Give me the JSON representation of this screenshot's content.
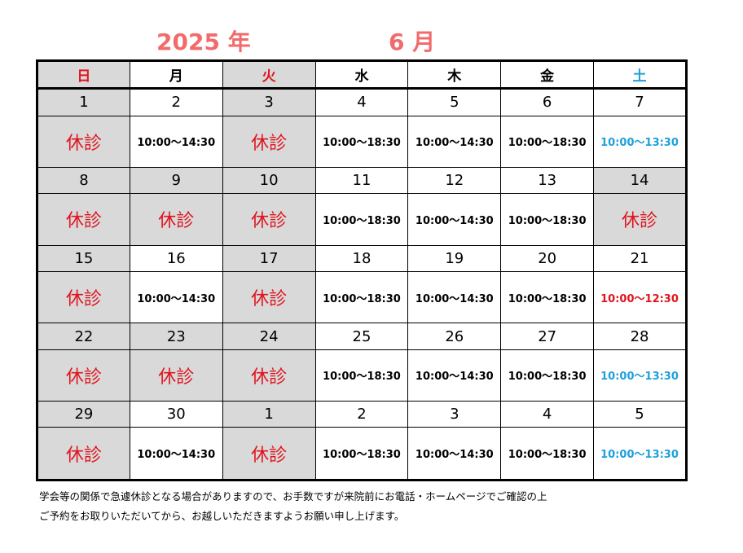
{
  "title": {
    "year": "2025 年",
    "month": "6 月"
  },
  "weekdays": [
    "日",
    "月",
    "火",
    "水",
    "木",
    "金",
    "土"
  ],
  "weeks": [
    {
      "days": [
        "1",
        "2",
        "3",
        "4",
        "5",
        "6",
        "7"
      ],
      "info": [
        "休診",
        "10:00～14:30",
        "休診",
        "10:00～18:30",
        "10:00～14:30",
        "10:00～18:30",
        "10:00～13:30"
      ]
    },
    {
      "days": [
        "8",
        "9",
        "10",
        "11",
        "12",
        "13",
        "14"
      ],
      "info": [
        "休診",
        "休診",
        "休診",
        "10:00～18:30",
        "10:00～14:30",
        "10:00～18:30",
        "休診"
      ]
    },
    {
      "days": [
        "15",
        "16",
        "17",
        "18",
        "19",
        "20",
        "21"
      ],
      "info": [
        "休診",
        "10:00～14:30",
        "休診",
        "10:00～18:30",
        "10:00～14:30",
        "10:00～18:30",
        "10:00～12:30"
      ]
    },
    {
      "days": [
        "22",
        "23",
        "24",
        "25",
        "26",
        "27",
        "28"
      ],
      "info": [
        "休診",
        "休診",
        "休診",
        "10:00～18:30",
        "10:00～14:30",
        "10:00～18:30",
        "10:00～13:30"
      ]
    },
    {
      "days": [
        "29",
        "30",
        "1",
        "2",
        "3",
        "4",
        "5"
      ],
      "info": [
        "休診",
        "10:00～14:30",
        "休診",
        "10:00～18:30",
        "10:00～14:30",
        "10:00～18:30",
        "10:00～13:30"
      ]
    }
  ],
  "notes": [
    "学会等の関係で急遽休診となる場合がありますので、お手数ですが来院前にお電話・ホームページでご確認の上",
    "ご予約をお取りいただいてから、お越しいただきますようお願い申し上げます。"
  ],
  "colors": {
    "title": "#f26b6b",
    "closed": "#e0141e",
    "saturday": "#1ea0dc",
    "closed_cell_bg": "#d9d9d9"
  }
}
